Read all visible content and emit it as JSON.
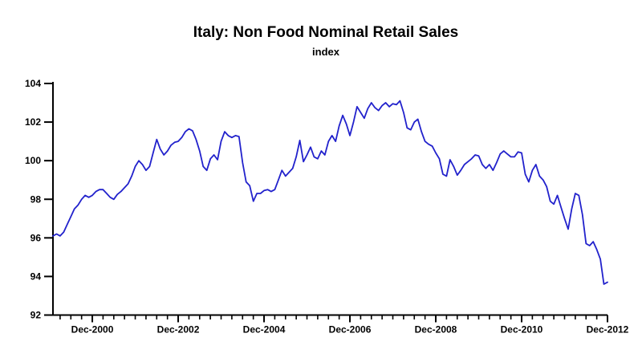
{
  "title": "Italy: Non Food Nominal Retail Sales",
  "subtitle": "index",
  "colors": {
    "line": "#2222cc",
    "axis": "#000000",
    "text": "#000000",
    "background": "#ffffff"
  },
  "chart_data": {
    "type": "line",
    "title": "Italy: Non Food Nominal Retail Sales",
    "subtitle": "index",
    "ylabel": "",
    "xlabel": "",
    "ylim": [
      92,
      104
    ],
    "y_ticks": [
      92,
      94,
      96,
      98,
      100,
      102,
      104
    ],
    "grid": false,
    "legend": "none",
    "frequency": "monthly",
    "x_start": "Jan-2000",
    "x_end": "Dec-2012",
    "x_tick_labels": [
      "Dec-2000",
      "Dec-2002",
      "Dec-2004",
      "Dec-2006",
      "Dec-2008",
      "Dec-2010",
      "Dec-2012"
    ],
    "minor_tick_interval_months": 3,
    "values": [
      96.1,
      96.2,
      96.1,
      96.3,
      96.7,
      97.1,
      97.5,
      97.7,
      98.0,
      98.2,
      98.1,
      98.2,
      98.4,
      98.5,
      98.5,
      98.3,
      98.1,
      98.0,
      98.25,
      98.4,
      98.6,
      98.8,
      99.2,
      99.7,
      100.0,
      99.8,
      99.5,
      99.7,
      100.4,
      101.1,
      100.6,
      100.3,
      100.5,
      100.8,
      100.95,
      101.0,
      101.2,
      101.5,
      101.65,
      101.55,
      101.1,
      100.5,
      99.7,
      99.5,
      100.1,
      100.3,
      100.05,
      101.0,
      101.5,
      101.3,
      101.2,
      101.3,
      101.25,
      99.9,
      98.9,
      98.7,
      97.9,
      98.3,
      98.3,
      98.45,
      98.5,
      98.4,
      98.5,
      99.0,
      99.5,
      99.2,
      99.4,
      99.6,
      100.2,
      101.05,
      99.95,
      100.3,
      100.7,
      100.2,
      100.1,
      100.5,
      100.3,
      101.0,
      101.3,
      101.0,
      101.8,
      102.35,
      101.9,
      101.3,
      102.0,
      102.8,
      102.5,
      102.2,
      102.7,
      103.0,
      102.75,
      102.6,
      102.85,
      103.0,
      102.8,
      102.95,
      102.9,
      103.1,
      102.5,
      101.7,
      101.6,
      102.0,
      102.15,
      101.5,
      101.0,
      100.85,
      100.75,
      100.4,
      100.1,
      99.3,
      99.2,
      100.05,
      99.7,
      99.25,
      99.5,
      99.8,
      99.95,
      100.1,
      100.3,
      100.25,
      99.8,
      99.6,
      99.8,
      99.5,
      99.9,
      100.35,
      100.5,
      100.35,
      100.2,
      100.2,
      100.45,
      100.4,
      99.3,
      98.9,
      99.5,
      99.8,
      99.2,
      99.0,
      98.65,
      97.9,
      97.75,
      98.2,
      97.6,
      97.0,
      96.45,
      97.5,
      98.3,
      98.2,
      97.2,
      95.7,
      95.6,
      95.8,
      95.4,
      94.9,
      93.6,
      93.7
    ]
  }
}
